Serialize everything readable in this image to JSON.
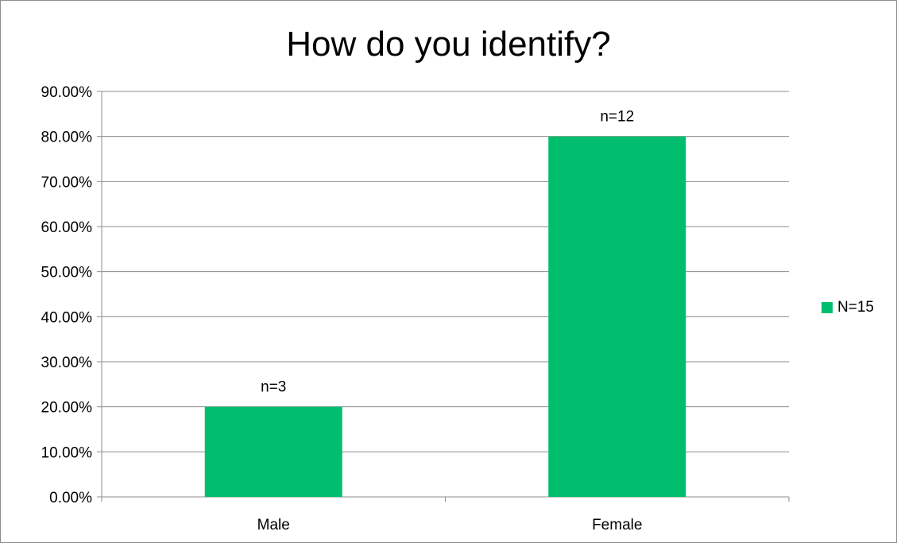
{
  "chart_data": {
    "type": "bar",
    "title": "How do you identify?",
    "categories": [
      "Male",
      "Female"
    ],
    "series": [
      {
        "name": "N=15",
        "values": [
          20,
          80
        ],
        "data_labels": [
          "n=3",
          "n=12"
        ],
        "color": "#00be6e"
      }
    ],
    "ylim": [
      0,
      90
    ],
    "yticks": [
      0,
      10,
      20,
      30,
      40,
      50,
      60,
      70,
      80,
      90
    ],
    "ytick_labels": [
      "0.00%",
      "10.00%",
      "20.00%",
      "30.00%",
      "40.00%",
      "50.00%",
      "60.00%",
      "70.00%",
      "80.00%",
      "90.00%"
    ],
    "grid": true,
    "legend_position": "right",
    "gridline_color": "#8c8c8c",
    "axis_color": "#8c8c8c"
  }
}
